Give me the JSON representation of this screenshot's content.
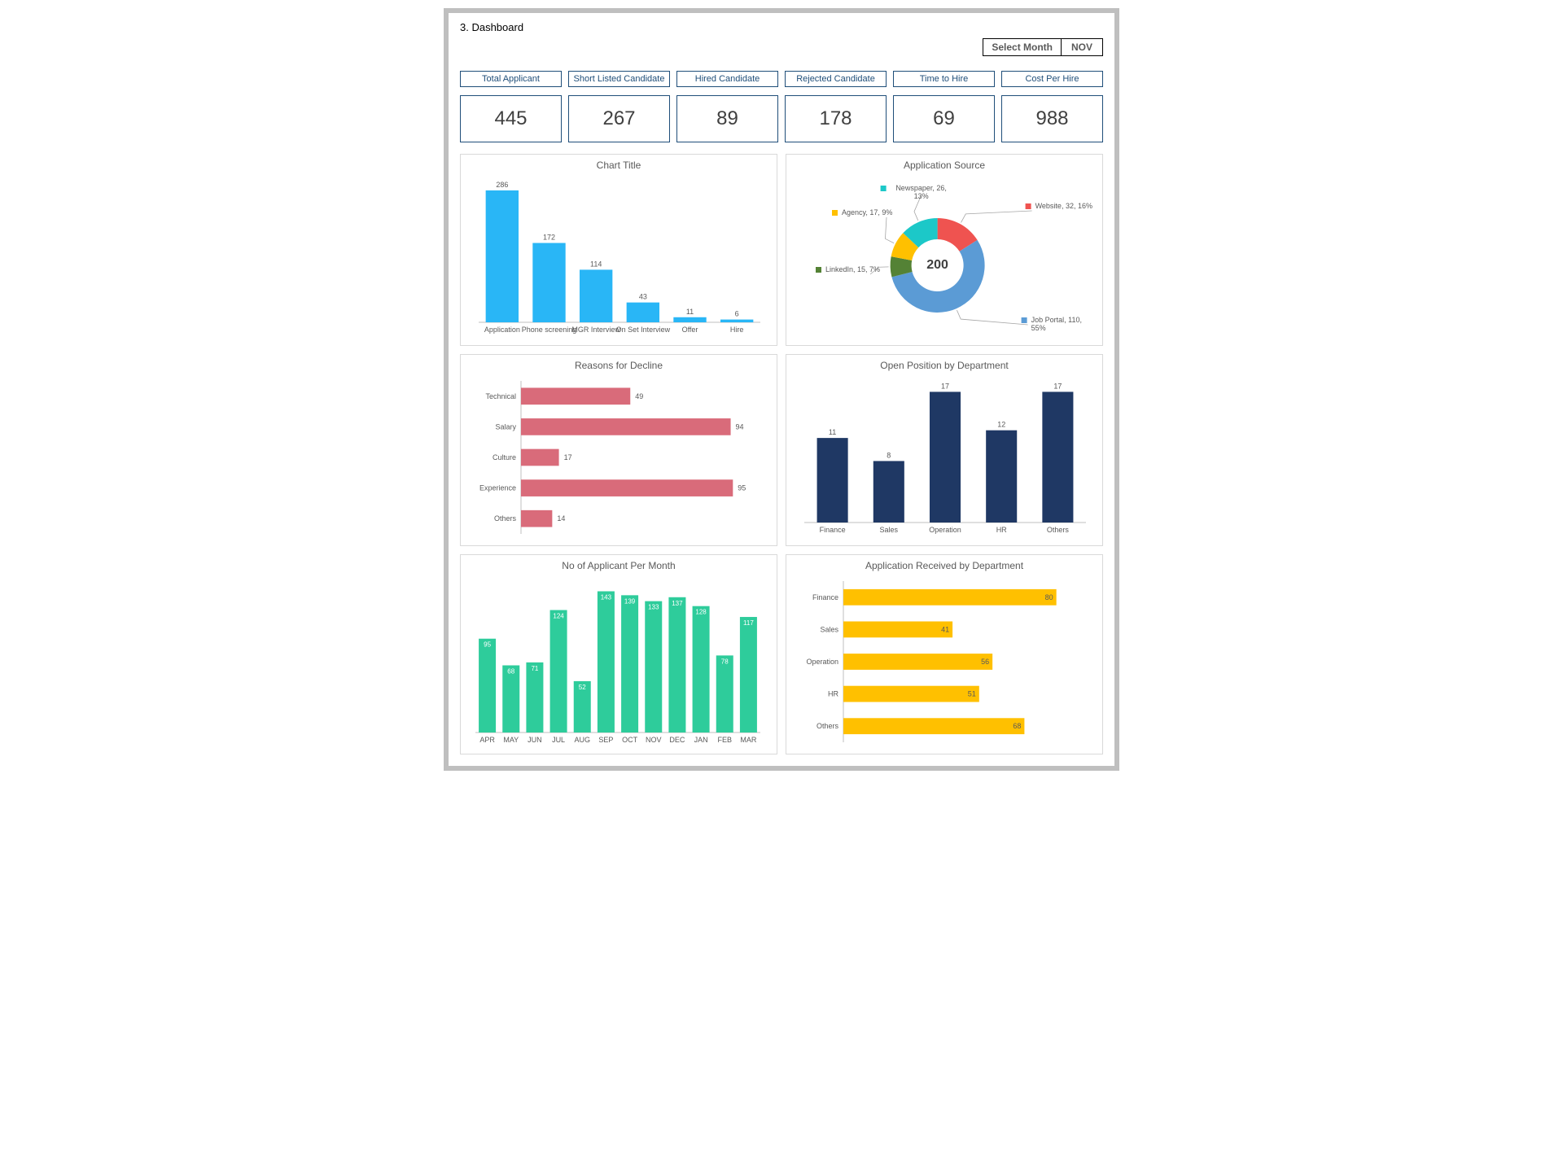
{
  "page": {
    "title": "3. Dashboard"
  },
  "month_selector": {
    "label": "Select Month",
    "value": "NOV"
  },
  "kpis": {
    "labels": [
      "Total Applicant",
      "Short Listed Candidate",
      "Hired Candidate",
      "Rejected Candidate",
      "Time to Hire",
      "Cost Per Hire"
    ],
    "values": [
      "445",
      "267",
      "89",
      "178",
      "69",
      "988"
    ],
    "border_color": "#1f4e79",
    "label_fontsize": 11,
    "value_fontsize": 24
  },
  "funnel_chart": {
    "title": "Chart Title",
    "type": "bar-vertical",
    "categories": [
      "Application",
      "Phone screening",
      "MGR Interview",
      "On Set Interview",
      "Offer",
      "Hire"
    ],
    "values": [
      286,
      172,
      114,
      43,
      11,
      6
    ],
    "bar_color": "#29b6f6",
    "ymax": 300,
    "label_fontsize": 8,
    "data_label_fontsize": 9
  },
  "source_chart": {
    "title": "Application Source",
    "type": "donut",
    "center_value": "200",
    "slices": [
      {
        "label": "Website",
        "value": 32,
        "pct": 16,
        "color": "#ef5350"
      },
      {
        "label": "Job Portal",
        "value": 110,
        "pct": 55,
        "color": "#5b9bd5"
      },
      {
        "label": "LinkedIn",
        "value": 15,
        "pct": 7,
        "color": "#548235"
      },
      {
        "label": "Agency",
        "value": 17,
        "pct": 9,
        "color": "#ffc000"
      },
      {
        "label": "Newspaper",
        "value": 26,
        "pct": 13,
        "color": "#1cc8c8"
      }
    ],
    "callouts": [
      {
        "text": "Newspaper, 26, 13%",
        "marker_color": "#1cc8c8",
        "side": "top"
      },
      {
        "text": "Website, 32, 16%",
        "marker_color": "#ef5350",
        "side": "right-top"
      },
      {
        "text": "Job Portal, 110, 55%",
        "marker_color": "#5b9bd5",
        "side": "right-bottom"
      },
      {
        "text": "LinkedIn, 15, 7%",
        "marker_color": "#548235",
        "side": "left-mid"
      },
      {
        "text": "Agency, 17, 9%",
        "marker_color": "#ffc000",
        "side": "left-top"
      }
    ]
  },
  "decline_chart": {
    "title": "Reasons for Decline",
    "type": "bar-horizontal",
    "categories": [
      "Technical",
      "Salary",
      "Culture",
      "Experience",
      "Others"
    ],
    "values": [
      49,
      94,
      17,
      95,
      14
    ],
    "bar_color": "#d96b7a",
    "xmax": 100
  },
  "open_pos_chart": {
    "title": "Open Position by Department",
    "type": "bar-vertical",
    "categories": [
      "Finance",
      "Sales",
      "Operation",
      "HR",
      "Others"
    ],
    "values": [
      11,
      8,
      17,
      12,
      17
    ],
    "bar_color": "#1f3864",
    "ymax": 18
  },
  "applicants_month_chart": {
    "title": "No of Applicant Per Month",
    "type": "bar-vertical",
    "categories": [
      "APR",
      "MAY",
      "JUN",
      "JUL",
      "AUG",
      "SEP",
      "OCT",
      "NOV",
      "DEC",
      "JAN",
      "FEB",
      "MAR"
    ],
    "values": [
      95,
      68,
      71,
      124,
      52,
      143,
      139,
      133,
      137,
      128,
      78,
      117
    ],
    "bar_color": "#2ecc9b",
    "ymax": 150,
    "label_inside": true
  },
  "app_by_dept_chart": {
    "title": "Application Received by Department",
    "type": "bar-horizontal",
    "categories": [
      "Finance",
      "Sales",
      "Operation",
      "HR",
      "Others"
    ],
    "values": [
      80,
      41,
      56,
      51,
      68
    ],
    "bar_color": "#ffc000",
    "xmax": 85,
    "label_at_end": true
  },
  "colors": {
    "card_border": "#d9d9d9",
    "axis": "#bfbfbf",
    "text": "#595959",
    "frame_border": "#bfbfbf",
    "background": "#ffffff"
  }
}
